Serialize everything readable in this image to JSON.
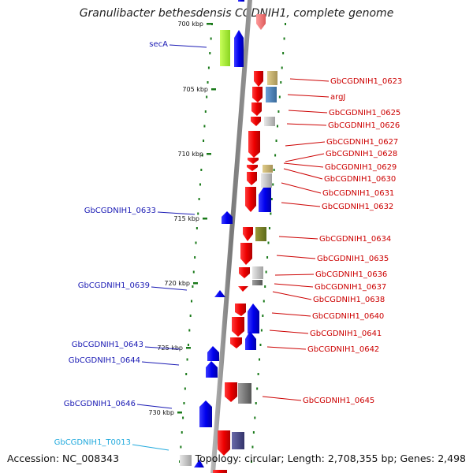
{
  "title": "Granulibacter bethesdensis CGDNIH1, complete genome",
  "footer": {
    "accession": "Accession: NC_008343",
    "topology": "Topology: circular; Length: 2,708,355 bp; Genes: 2,498"
  },
  "colors": {
    "backbone": "#888888",
    "ticks": "#1a7a1a",
    "left_label": "#1a1ab4",
    "right_label": "#cc0000",
    "trna_label": "#22aadd"
  },
  "scale": {
    "unit": "kbp",
    "ticks": [
      {
        "label": "700 kbp"
      },
      {
        "label": "705 kbp"
      },
      {
        "label": "710 kbp"
      },
      {
        "label": "715 kbp"
      },
      {
        "label": "720 kbp"
      },
      {
        "label": "725 kbp"
      },
      {
        "label": "730 kbp"
      }
    ]
  },
  "left_labels": [
    {
      "text": "secA",
      "color": "left"
    },
    {
      "text": "GbCGDNIH1_0633",
      "color": "left"
    },
    {
      "text": "GbCGDNIH1_0639",
      "color": "left"
    },
    {
      "text": "GbCGDNIH1_0643",
      "color": "left"
    },
    {
      "text": "GbCGDNIH1_0644",
      "color": "left"
    },
    {
      "text": "GbCGDNIH1_0646",
      "color": "left"
    },
    {
      "text": "GbCGDNIH1_T0013",
      "color": "trna"
    }
  ],
  "right_labels": [
    {
      "text": "GbCGDNIH1_0623"
    },
    {
      "text": "argJ"
    },
    {
      "text": "GbCGDNIH1_0625"
    },
    {
      "text": "GbCGDNIH1_0626"
    },
    {
      "text": "GbCGDNIH1_0627"
    },
    {
      "text": "GbCGDNIH1_0628"
    },
    {
      "text": "GbCGDNIH1_0629"
    },
    {
      "text": "GbCGDNIH1_0630"
    },
    {
      "text": "GbCGDNIH1_0631"
    },
    {
      "text": "GbCGDNIH1_0632"
    },
    {
      "text": "GbCGDNIH1_0634"
    },
    {
      "text": "GbCGDNIH1_0635"
    },
    {
      "text": "GbCGDNIH1_0636"
    },
    {
      "text": "GbCGDNIH1_0637"
    },
    {
      "text": "GbCGDNIH1_0638"
    },
    {
      "text": "GbCGDNIH1_0640"
    },
    {
      "text": "GbCGDNIH1_0641"
    },
    {
      "text": "GbCGDNIH1_0642"
    },
    {
      "text": "GbCGDNIH1_0645"
    }
  ]
}
